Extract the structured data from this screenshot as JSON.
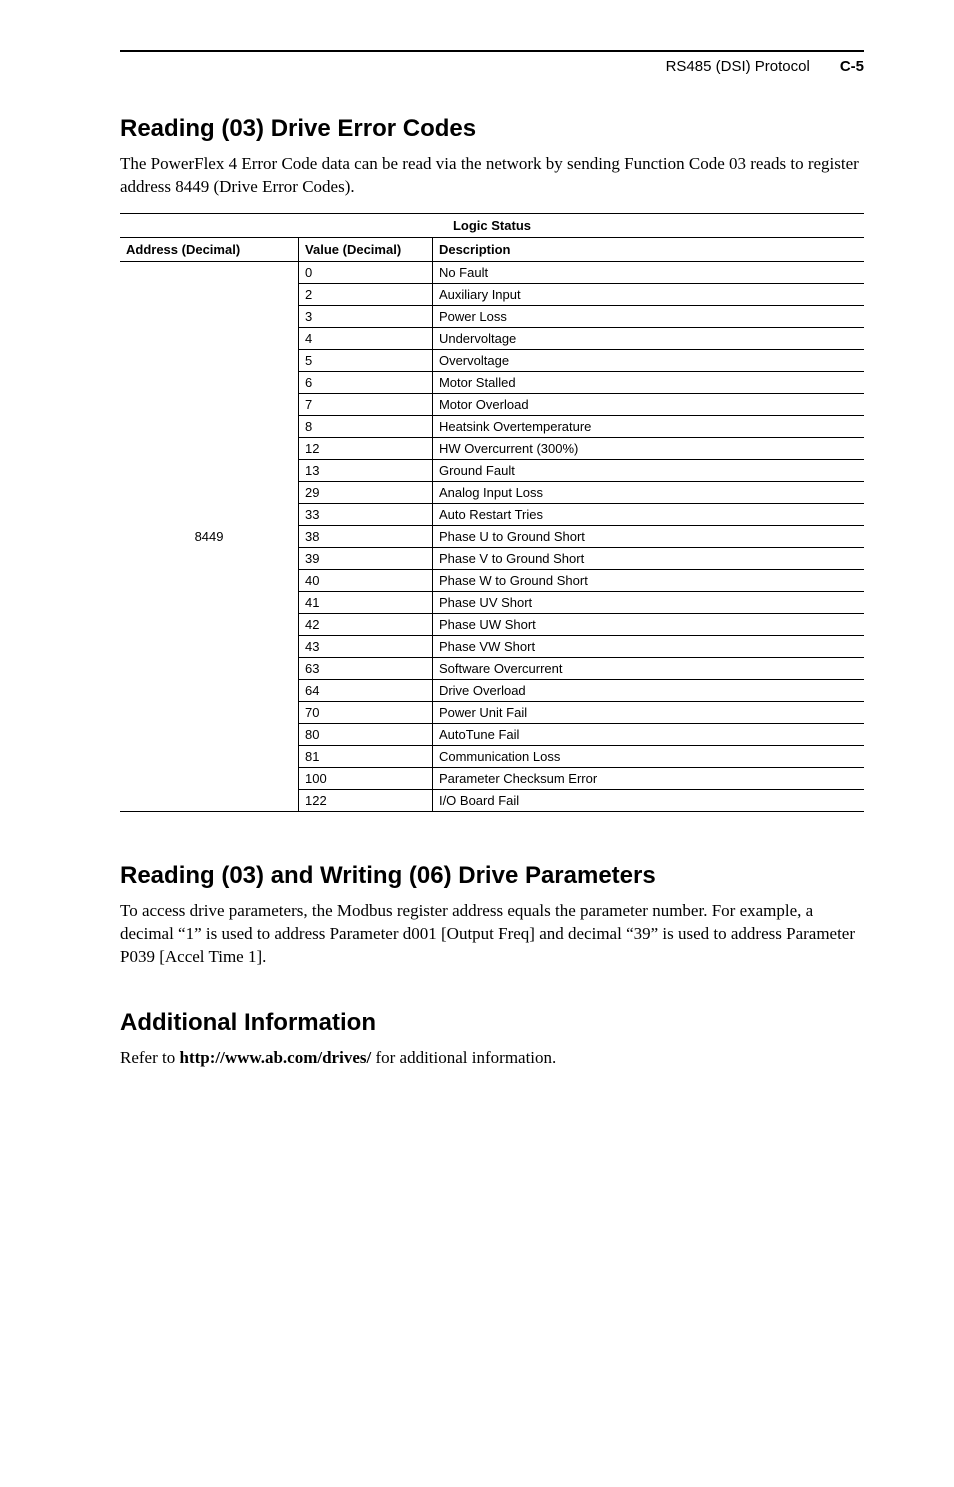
{
  "header": {
    "section": "RS485 (DSI) Protocol",
    "page": "C-5"
  },
  "sec1": {
    "title": "Reading (03) Drive Error Codes",
    "para": "The PowerFlex 4 Error Code data can be read via the network by sending Function Code 03 reads to register address 8449 (Drive Error Codes)."
  },
  "table": {
    "span_header": "Logic Status",
    "col1": "Address (Decimal)",
    "col2": "Value (Decimal)",
    "col3": "Description",
    "address": "8449",
    "rows": [
      {
        "v": "0",
        "d": "No Fault"
      },
      {
        "v": "2",
        "d": "Auxiliary Input"
      },
      {
        "v": "3",
        "d": "Power Loss"
      },
      {
        "v": "4",
        "d": "Undervoltage"
      },
      {
        "v": "5",
        "d": "Overvoltage"
      },
      {
        "v": "6",
        "d": "Motor Stalled"
      },
      {
        "v": "7",
        "d": "Motor Overload"
      },
      {
        "v": "8",
        "d": "Heatsink Overtemperature"
      },
      {
        "v": "12",
        "d": "HW Overcurrent (300%)"
      },
      {
        "v": "13",
        "d": "Ground Fault"
      },
      {
        "v": "29",
        "d": "Analog Input Loss"
      },
      {
        "v": "33",
        "d": "Auto Restart Tries"
      },
      {
        "v": "38",
        "d": "Phase U to Ground Short"
      },
      {
        "v": "39",
        "d": "Phase V to Ground Short"
      },
      {
        "v": "40",
        "d": "Phase W to Ground Short"
      },
      {
        "v": "41",
        "d": "Phase UV Short"
      },
      {
        "v": "42",
        "d": "Phase UW Short"
      },
      {
        "v": "43",
        "d": "Phase VW Short"
      },
      {
        "v": "63",
        "d": "Software Overcurrent"
      },
      {
        "v": "64",
        "d": "Drive Overload"
      },
      {
        "v": "70",
        "d": "Power Unit Fail"
      },
      {
        "v": "80",
        "d": "AutoTune Fail"
      },
      {
        "v": "81",
        "d": "Communication Loss"
      },
      {
        "v": "100",
        "d": "Parameter Checksum Error"
      },
      {
        "v": "122",
        "d": "I/O Board Fail"
      }
    ]
  },
  "sec2": {
    "title": "Reading (03) and Writing (06) Drive Parameters",
    "para": "To access drive parameters, the Modbus register address equals the parameter number. For example, a decimal “1” is used to address Parameter d001 [Output Freq] and decimal “39” is used to address Parameter P039 [Accel Time 1]."
  },
  "sec3": {
    "title": "Additional Information",
    "para_pre": "Refer to ",
    "link": "http://www.ab.com/drives/",
    "para_post": " for additional information."
  }
}
